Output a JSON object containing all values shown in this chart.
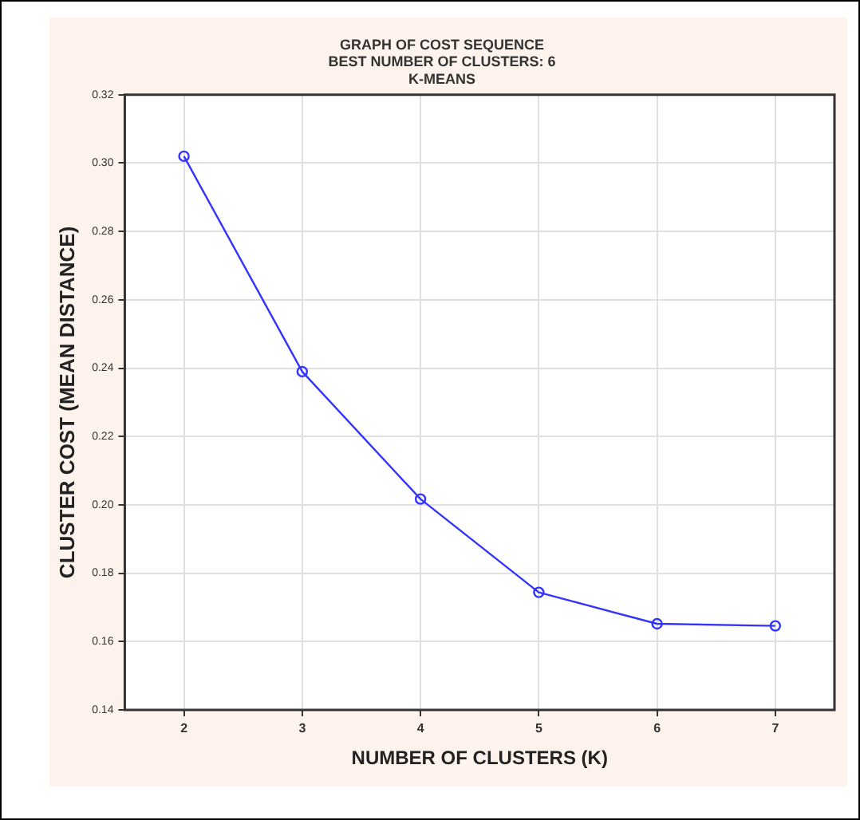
{
  "chart_data": {
    "type": "line",
    "title": "GRAPH OF COST SEQUENCE\nBEST NUMBER OF CLUSTERS: 6\nK-MEANS",
    "xlabel": "NUMBER OF CLUSTERS (K)",
    "ylabel": "CLUSTER COST (MEAN DISTANCE)",
    "x": [
      2,
      3,
      4,
      5,
      6,
      7
    ],
    "series": [
      {
        "color": "#3333ff",
        "values": [
          0.302,
          0.239,
          0.2017,
          0.1744,
          0.1652,
          0.1646
        ]
      }
    ],
    "xlim": [
      1.5,
      7.5
    ],
    "xticks": [
      2,
      3,
      4,
      5,
      6,
      7
    ],
    "ylim": [
      0.14,
      0.32
    ],
    "yticks": [
      0.14,
      0.16,
      0.18,
      {
        "value": 0.2,
        "label": "0.20"
      },
      0.22,
      0.24,
      0.26,
      0.28,
      {
        "value": 0.3,
        "label": "0.30"
      },
      0.32
    ],
    "grid": true,
    "legend": false,
    "marker": "circle",
    "line_style": "solid"
  }
}
